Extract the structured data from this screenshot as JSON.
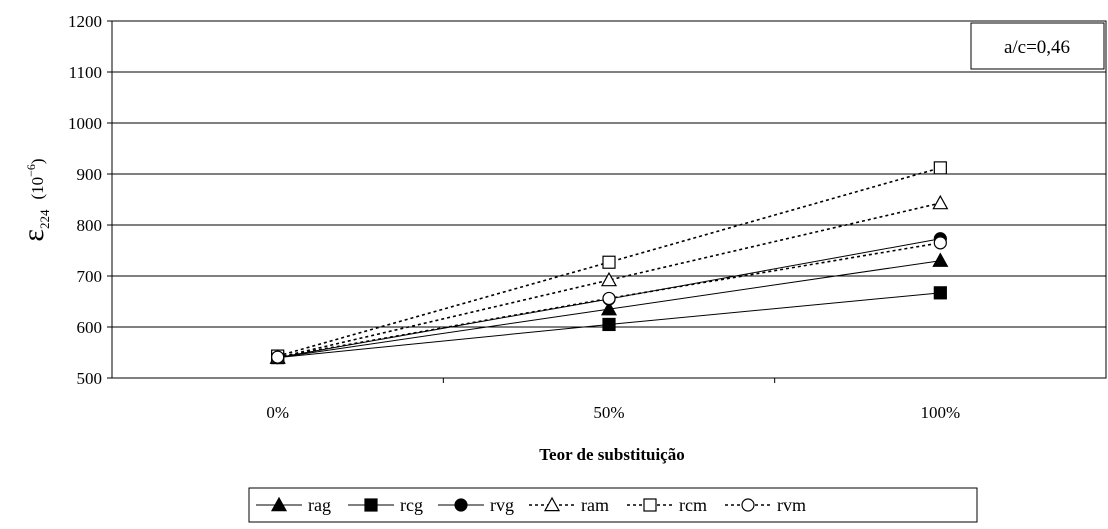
{
  "chart_data": {
    "type": "line",
    "categories": [
      "0%",
      "50%",
      "100%"
    ],
    "xlabel": "Teor de substituição",
    "ylabel": {
      "symbol": "ε",
      "subscript": "224",
      "unit_base": "(10",
      "unit_exp": "−6",
      "unit_close": ")"
    },
    "ylim": [
      500,
      1200
    ],
    "yticks": [
      500,
      600,
      700,
      800,
      900,
      1000,
      1100,
      1200
    ],
    "grid": true,
    "legend_position": "bottom",
    "annotation": "a/c=0,46",
    "series": [
      {
        "name": "rag",
        "values": [
          540,
          635,
          730
        ],
        "marker": "triangle",
        "filled": true,
        "dashed": false
      },
      {
        "name": "rcg",
        "values": [
          540,
          605,
          667
        ],
        "marker": "square",
        "filled": true,
        "dashed": false
      },
      {
        "name": "rvg",
        "values": [
          540,
          655,
          773
        ],
        "marker": "circle",
        "filled": true,
        "dashed": false
      },
      {
        "name": "ram",
        "values": [
          540,
          692,
          843
        ],
        "marker": "triangle",
        "filled": false,
        "dashed": true
      },
      {
        "name": "rcm",
        "values": [
          543,
          727,
          912
        ],
        "marker": "square",
        "filled": false,
        "dashed": true
      },
      {
        "name": "rvm",
        "values": [
          541,
          656,
          765
        ],
        "marker": "circle",
        "filled": false,
        "dashed": true
      }
    ]
  }
}
